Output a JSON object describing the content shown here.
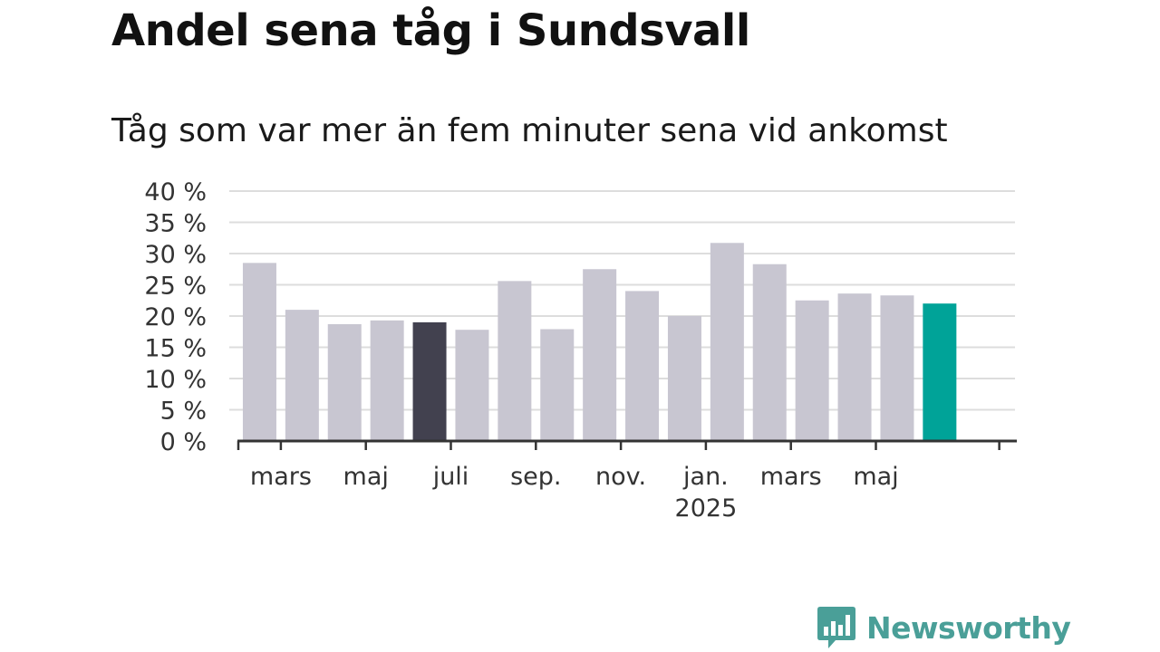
{
  "title": "Andel sena tåg i Sundsvall",
  "subtitle": "Tåg som var mer än fem minuter sena vid ankomst",
  "brand": {
    "name": "Newsworthy",
    "icon": "bar-chart-speech-bubble-icon",
    "color": "#4a9f98"
  },
  "chart_data": {
    "type": "bar",
    "title": "Andel sena tåg i Sundsvall",
    "subtitle": "Tåg som var mer än fem minuter sena vid ankomst",
    "ylim": [
      0,
      40
    ],
    "yticks": [
      0,
      5,
      10,
      15,
      20,
      25,
      30,
      35,
      40
    ],
    "y_tick_suffix": " %",
    "grid": true,
    "categories": [
      "2024-02",
      "2024-03",
      "2024-04",
      "2024-05",
      "2024-06",
      "2024-07",
      "2024-08",
      "2024-09",
      "2024-10",
      "2024-11",
      "2024-12",
      "2025-01",
      "2025-02",
      "2025-03",
      "2025-04",
      "2025-05",
      "2025-06"
    ],
    "values": [
      28.5,
      21,
      18.7,
      19.3,
      19,
      17.8,
      25.6,
      17.9,
      27.5,
      24,
      20,
      31.7,
      28.3,
      22.5,
      23.6,
      23.3,
      22
    ],
    "x_tick_labels": [
      {
        "at": "2024-03",
        "label": "mars"
      },
      {
        "at": "2024-05",
        "label": "maj"
      },
      {
        "at": "2024-07",
        "label": "juli"
      },
      {
        "at": "2024-09",
        "label": "sep."
      },
      {
        "at": "2024-11",
        "label": "nov."
      },
      {
        "at": "2025-01",
        "label": "jan.",
        "sublabel": "2025"
      },
      {
        "at": "2025-03",
        "label": "mars"
      },
      {
        "at": "2025-05",
        "label": "maj"
      }
    ],
    "colors": {
      "default": "#c8c6d1",
      "highlight_dark": "#42414f",
      "highlight_latest": "#00a398",
      "grid": "#dddddd",
      "axis": "#333333",
      "text": "#333333"
    },
    "highlights": [
      {
        "category": "2024-06",
        "color": "#42414f"
      },
      {
        "category": "2025-06",
        "color": "#00a398"
      }
    ]
  }
}
